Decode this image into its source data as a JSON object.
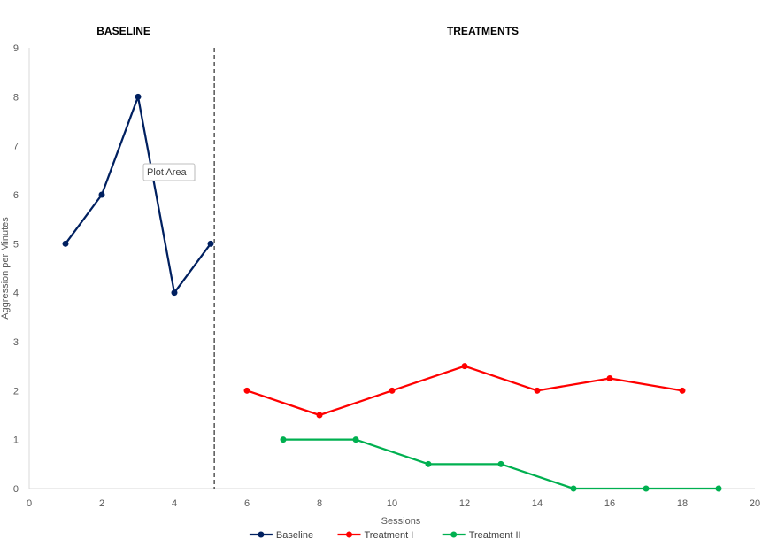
{
  "chart_data": {
    "type": "line",
    "xlabel": "Sessions",
    "ylabel": "Aggression per Minutes",
    "xlim": [
      0,
      20
    ],
    "ylim": [
      0,
      9
    ],
    "xticks": [
      0,
      2,
      4,
      6,
      8,
      10,
      12,
      14,
      16,
      18,
      20
    ],
    "yticks": [
      0,
      1,
      2,
      3,
      4,
      5,
      6,
      7,
      8,
      9
    ],
    "grid": false,
    "legend_position": "bottom",
    "phase_labels": [
      {
        "text": "BASELINE",
        "x": 2.6
      },
      {
        "text": "TREATMENTS",
        "x": 12.5
      }
    ],
    "phase_line_x": 5.1,
    "tooltip": {
      "text": "Plot Area"
    },
    "series": [
      {
        "name": "Baseline",
        "color": "#002060",
        "x": [
          1,
          2,
          3,
          4,
          5
        ],
        "y": [
          5,
          6,
          8,
          4,
          5
        ]
      },
      {
        "name": "Treatment I",
        "color": "#ff0000",
        "x": [
          6,
          8,
          10,
          12,
          14,
          16,
          18
        ],
        "y": [
          2,
          1.5,
          2,
          2.5,
          2,
          2.25,
          2
        ]
      },
      {
        "name": "Treatment II",
        "color": "#00b050",
        "x": [
          7,
          9,
          11,
          13,
          15,
          17,
          19
        ],
        "y": [
          1,
          1,
          0.5,
          0.5,
          0,
          0,
          0
        ]
      }
    ]
  }
}
